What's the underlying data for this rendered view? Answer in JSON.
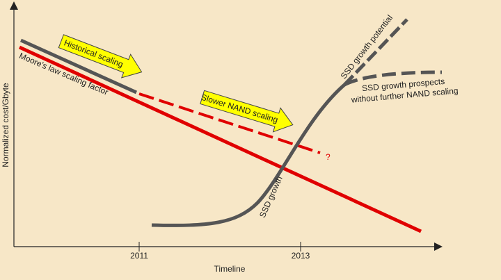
{
  "axes": {
    "y_label": "Normalized cost/Gbyte",
    "x_label": "Timeline",
    "x_ticks": [
      "2011",
      "2013"
    ]
  },
  "annotations": {
    "historical": "Historical scaling",
    "slower": "Slower NAND scaling",
    "moore": "Moore's law scaling factor",
    "potential": "SSD growth potential",
    "prospects": [
      "SSD growth prospects",
      "without further NAND scaling"
    ],
    "growth": "SSD growth",
    "question": "?"
  }
}
